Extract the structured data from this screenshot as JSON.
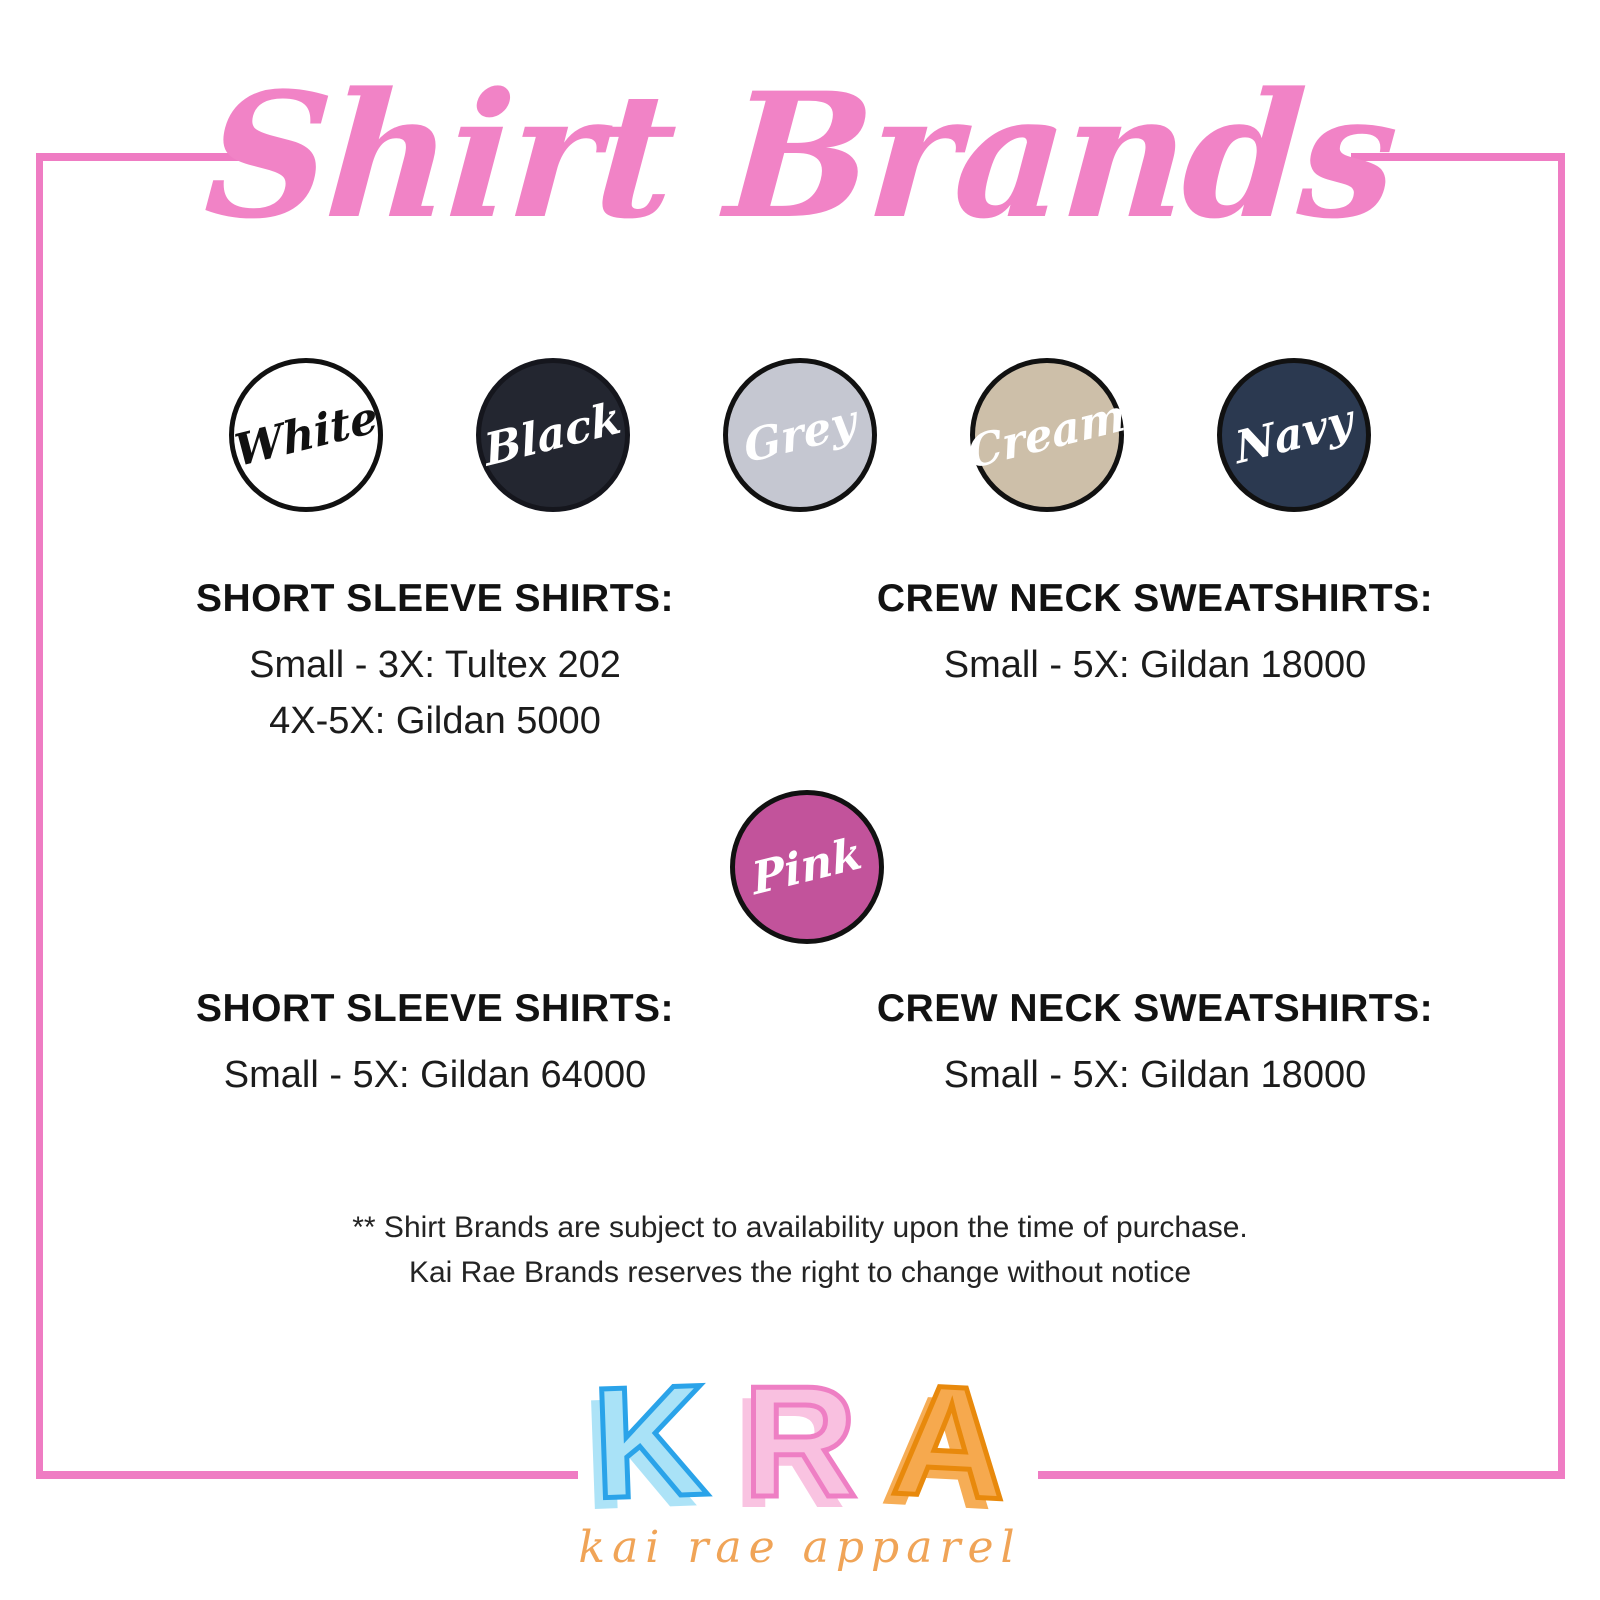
{
  "page": {
    "background": "#ffffff"
  },
  "frame": {
    "color": "#ef7cc3"
  },
  "title": {
    "text": "Shirt Brands",
    "color": "#f183c6"
  },
  "swatches": {
    "row_top": [
      {
        "name": "white",
        "label": "White",
        "fill": "#ffffff",
        "text": "#111111",
        "border": "#111111"
      },
      {
        "name": "black",
        "label": "Black",
        "fill": "#232630",
        "text": "#ffffff",
        "border": "#15161d"
      },
      {
        "name": "grey",
        "label": "Grey",
        "fill": "#c5c7d1",
        "text": "#ffffff",
        "border": "#111111"
      },
      {
        "name": "cream",
        "label": "Cream",
        "fill": "#cdbfa9",
        "text": "#ffffff",
        "border": "#111111"
      },
      {
        "name": "navy",
        "label": "Navy",
        "fill": "#2b3950",
        "text": "#ffffff",
        "border": "#111111"
      }
    ],
    "row_pink": [
      {
        "name": "pink",
        "label": "Pink",
        "fill": "#c2539b",
        "text": "#ffffff",
        "border": "#111111"
      }
    ]
  },
  "sections": {
    "top": {
      "left": {
        "header": "SHORT SLEEVE SHIRTS:",
        "line1": "Small - 3X: Tultex 202",
        "line2": "4X-5X: Gildan 5000"
      },
      "right": {
        "header": "CREW NECK SWEATSHIRTS:",
        "line1": "Small - 5X: Gildan 18000"
      }
    },
    "pink": {
      "left": {
        "header": "SHORT SLEEVE SHIRTS:",
        "line1": "Small - 5X: Gildan 64000"
      },
      "right": {
        "header": "CREW NECK SWEATSHIRTS:",
        "line1": "Small - 5X: Gildan 18000"
      }
    }
  },
  "disclaimer": {
    "line1": "** Shirt Brands are subject to availability upon the time of purchase.",
    "line2": "Kai Rae Brands reserves the right to change without notice"
  },
  "logo": {
    "letters": [
      {
        "char": "K",
        "fill": "#a9e2f7",
        "outline": "#2aa3e9"
      },
      {
        "char": "R",
        "fill": "#f9c0e0",
        "outline": "#ee7fc4"
      },
      {
        "char": "A",
        "fill": "#f6a94e",
        "outline": "#e8890c"
      }
    ],
    "tagline": {
      "text": "kai rae apparel",
      "color": "#f0a457"
    }
  }
}
